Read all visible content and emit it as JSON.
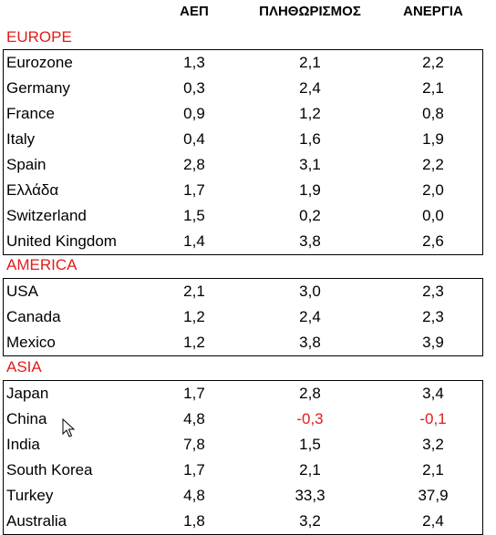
{
  "headers": [
    "ΑΕΠ",
    "ΠΛΗΘΩΡΙΣΜΟΣ",
    "ΑΝΕΡΓΙΑ"
  ],
  "regions": [
    {
      "name": "EUROPE",
      "rows": [
        {
          "name": "Eurozone",
          "gdp": "1,3",
          "inflation": "2,1",
          "unemployment": "2,2"
        },
        {
          "name": "Germany",
          "gdp": "0,3",
          "inflation": "2,4",
          "unemployment": "2,1"
        },
        {
          "name": "France",
          "gdp": "0,9",
          "inflation": "1,2",
          "unemployment": "0,8"
        },
        {
          "name": "Italy",
          "gdp": "0,4",
          "inflation": "1,6",
          "unemployment": "1,9"
        },
        {
          "name": "Spain",
          "gdp": "2,8",
          "inflation": "3,1",
          "unemployment": "2,2"
        },
        {
          "name": "Ελλάδα",
          "gdp": "1,7",
          "inflation": "1,9",
          "unemployment": "2,0"
        },
        {
          "name": "Switzerland",
          "gdp": "1,5",
          "inflation": "0,2",
          "unemployment": "0,0"
        },
        {
          "name": "United Kingdom",
          "gdp": "1,4",
          "inflation": "3,8",
          "unemployment": "2,6"
        }
      ]
    },
    {
      "name": "AMERICA",
      "rows": [
        {
          "name": "USA",
          "gdp": "2,1",
          "inflation": "3,0",
          "unemployment": "2,3"
        },
        {
          "name": "Canada",
          "gdp": "1,2",
          "inflation": "2,4",
          "unemployment": "2,3"
        },
        {
          "name": "Mexico",
          "gdp": "1,2",
          "inflation": "3,8",
          "unemployment": "3,9"
        }
      ]
    },
    {
      "name": "ASIA",
      "rows": [
        {
          "name": "Japan",
          "gdp": "1,7",
          "inflation": "2,8",
          "unemployment": "3,4"
        },
        {
          "name": "China",
          "gdp": "4,8",
          "inflation": "-0,3",
          "unemployment": "-0,1"
        },
        {
          "name": "India",
          "gdp": "7,8",
          "inflation": "1,5",
          "unemployment": "3,2"
        },
        {
          "name": "South Korea",
          "gdp": "1,7",
          "inflation": "2,1",
          "unemployment": "2,1"
        },
        {
          "name": "Turkey",
          "gdp": "4,8",
          "inflation": "33,3",
          "unemployment": "37,9"
        },
        {
          "name": "Australia",
          "gdp": "1,8",
          "inflation": "3,2",
          "unemployment": "2,4"
        }
      ]
    }
  ],
  "colors": {
    "region_label": "#e41b1b",
    "negative_value": "#e41b1b",
    "text": "#000000"
  },
  "pointer": {
    "icon": "mouse-cursor-icon"
  }
}
